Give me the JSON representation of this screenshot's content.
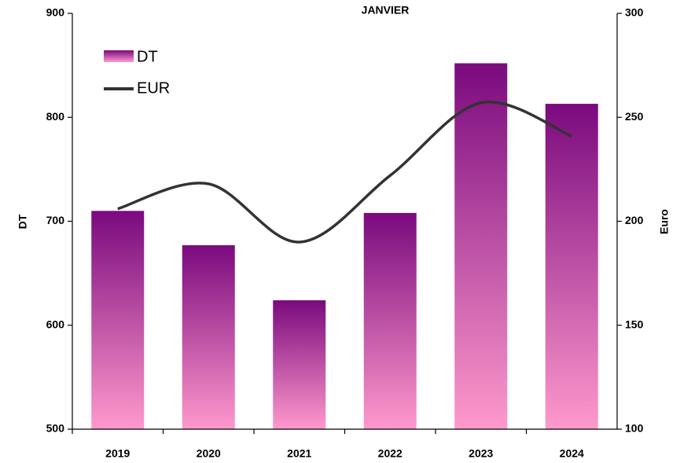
{
  "chart_data": {
    "type": "bar_line",
    "title": "JANVIER",
    "categories": [
      "2019",
      "2020",
      "2021",
      "2022",
      "2023",
      "2024"
    ],
    "series": [
      {
        "name": "DT",
        "type": "bar",
        "color": "#7a0a7e",
        "color2": "#ff99cc",
        "values": [
          710,
          677,
          624,
          708,
          852,
          813
        ]
      },
      {
        "name": "EUR",
        "type": "line",
        "axis": "y2",
        "color": "#333333",
        "values": [
          206,
          218,
          190,
          222,
          257,
          241
        ]
      }
    ],
    "ylabel": "DT",
    "y2label": "Euro",
    "ylim": [
      500,
      900
    ],
    "yticks": [
      500,
      600,
      700,
      800,
      900
    ],
    "y2lim": [
      100,
      300
    ],
    "y2ticks": [
      100,
      150,
      200,
      250,
      300
    ],
    "legend": "upper left"
  }
}
